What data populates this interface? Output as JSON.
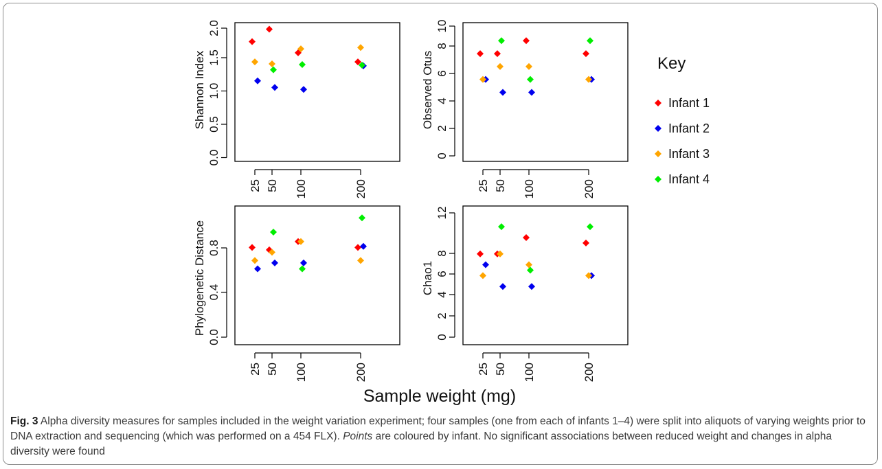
{
  "chart_data": [
    {
      "type": "scatter",
      "panel": "top-left",
      "xlabel": "",
      "ylabel": "Shannon Index",
      "x_ticks": [
        25,
        50,
        100,
        200
      ],
      "y_ticks": [
        "0.0",
        "0.5",
        "1.0",
        "1.5",
        "2.0"
      ],
      "ylim": [
        -0.06,
        2.06
      ],
      "series": [
        {
          "name": "Infant 1",
          "points": [
            [
              25,
              1.77
            ],
            [
              50,
              1.96
            ],
            [
              100,
              1.6
            ],
            [
              200,
              1.46
            ]
          ]
        },
        {
          "name": "Infant 2",
          "points": [
            [
              25,
              1.17
            ],
            [
              50,
              1.07
            ],
            [
              100,
              1.04
            ],
            [
              200,
              1.4
            ]
          ]
        },
        {
          "name": "Infant 3",
          "points": [
            [
              25,
              1.46
            ],
            [
              50,
              1.43
            ],
            [
              100,
              1.66
            ],
            [
              200,
              1.68
            ]
          ]
        },
        {
          "name": "Infant 4",
          "points": [
            [
              25,
              null
            ],
            [
              50,
              1.34
            ],
            [
              100,
              1.42
            ],
            [
              200,
              1.41
            ]
          ]
        }
      ]
    },
    {
      "type": "scatter",
      "panel": "top-right",
      "xlabel": "",
      "ylabel": "Observed Otus",
      "x_ticks": [
        25,
        50,
        100,
        200
      ],
      "y_ticks": [
        "0",
        "2",
        "4",
        "6",
        "8",
        "10"
      ],
      "ylim": [
        -0.35,
        10.4
      ],
      "series": [
        {
          "name": "Infant 1",
          "points": [
            [
              25,
              8
            ],
            [
              50,
              8
            ],
            [
              100,
              9
            ],
            [
              200,
              8
            ]
          ]
        },
        {
          "name": "Infant 2",
          "points": [
            [
              25,
              6
            ],
            [
              50,
              5
            ],
            [
              100,
              5
            ],
            [
              200,
              6
            ]
          ]
        },
        {
          "name": "Infant 3",
          "points": [
            [
              25,
              6
            ],
            [
              50,
              7
            ],
            [
              100,
              7
            ],
            [
              200,
              6
            ]
          ]
        },
        {
          "name": "Infant 4",
          "points": [
            [
              25,
              null
            ],
            [
              50,
              9
            ],
            [
              100,
              6
            ],
            [
              200,
              9
            ]
          ]
        }
      ]
    },
    {
      "type": "scatter",
      "panel": "bottom-left",
      "xlabel": "",
      "ylabel": "Phylogenetic Distance",
      "x_ticks": [
        25,
        50,
        100,
        200
      ],
      "y_ticks": [
        "0.0",
        "0.4",
        "0.8"
      ],
      "ylim": [
        -0.05,
        1.12
      ],
      "series": [
        {
          "name": "Infant 1",
          "points": [
            [
              25,
              0.77
            ],
            [
              50,
              0.75
            ],
            [
              100,
              0.82
            ],
            [
              200,
              0.77
            ]
          ]
        },
        {
          "name": "Infant 2",
          "points": [
            [
              25,
              0.59
            ],
            [
              50,
              0.64
            ],
            [
              100,
              0.64
            ],
            [
              200,
              0.78
            ]
          ]
        },
        {
          "name": "Infant 3",
          "points": [
            [
              25,
              0.66
            ],
            [
              50,
              0.73
            ],
            [
              100,
              0.82
            ],
            [
              200,
              0.66
            ]
          ]
        },
        {
          "name": "Infant 4",
          "points": [
            [
              25,
              null
            ],
            [
              50,
              0.9
            ],
            [
              100,
              0.59
            ],
            [
              200,
              1.02
            ]
          ]
        }
      ]
    },
    {
      "type": "scatter",
      "panel": "bottom-right",
      "xlabel": "",
      "ylabel": "Chao1",
      "x_ticks": [
        25,
        50,
        100,
        200
      ],
      "y_ticks": [
        "0",
        "2",
        "4",
        "6",
        "8",
        "12"
      ],
      "ylim": [
        -0.35,
        12.4
      ],
      "series": [
        {
          "name": "Infant 1",
          "points": [
            [
              25,
              8
            ],
            [
              50,
              8
            ],
            [
              100,
              9.5
            ],
            [
              200,
              9
            ]
          ]
        },
        {
          "name": "Infant 2",
          "points": [
            [
              25,
              7
            ],
            [
              50,
              5
            ],
            [
              100,
              5
            ],
            [
              200,
              6
            ]
          ]
        },
        {
          "name": "Infant 3",
          "points": [
            [
              25,
              6
            ],
            [
              50,
              8
            ],
            [
              100,
              7
            ],
            [
              200,
              6
            ]
          ]
        },
        {
          "name": "Infant 4",
          "points": [
            [
              25,
              null
            ],
            [
              50,
              10.5
            ],
            [
              100,
              6.5
            ],
            [
              200,
              10.5
            ]
          ]
        }
      ]
    }
  ],
  "legend": {
    "title": "Key",
    "items": [
      {
        "label": "Infant 1",
        "color": "#ff0000"
      },
      {
        "label": "Infant 2",
        "color": "#0000ee"
      },
      {
        "label": "Infant 3",
        "color": "#ffa500"
      },
      {
        "label": "Infant 4",
        "color": "#00ee00"
      }
    ]
  },
  "shared_xlabel": "Sample weight (mg)",
  "caption": {
    "label": "Fig. 3",
    "text_1": " Alpha diversity measures for samples included in the weight variation experiment; four samples (one from each of infants 1–4) were split into aliquots of varying weights prior to DNA extraction and sequencing (which was performed on a 454 FLX). ",
    "italic": "Points",
    "text_2": " are coloured by infant. No significant associations between reduced weight and changes in alpha diversity were found"
  }
}
